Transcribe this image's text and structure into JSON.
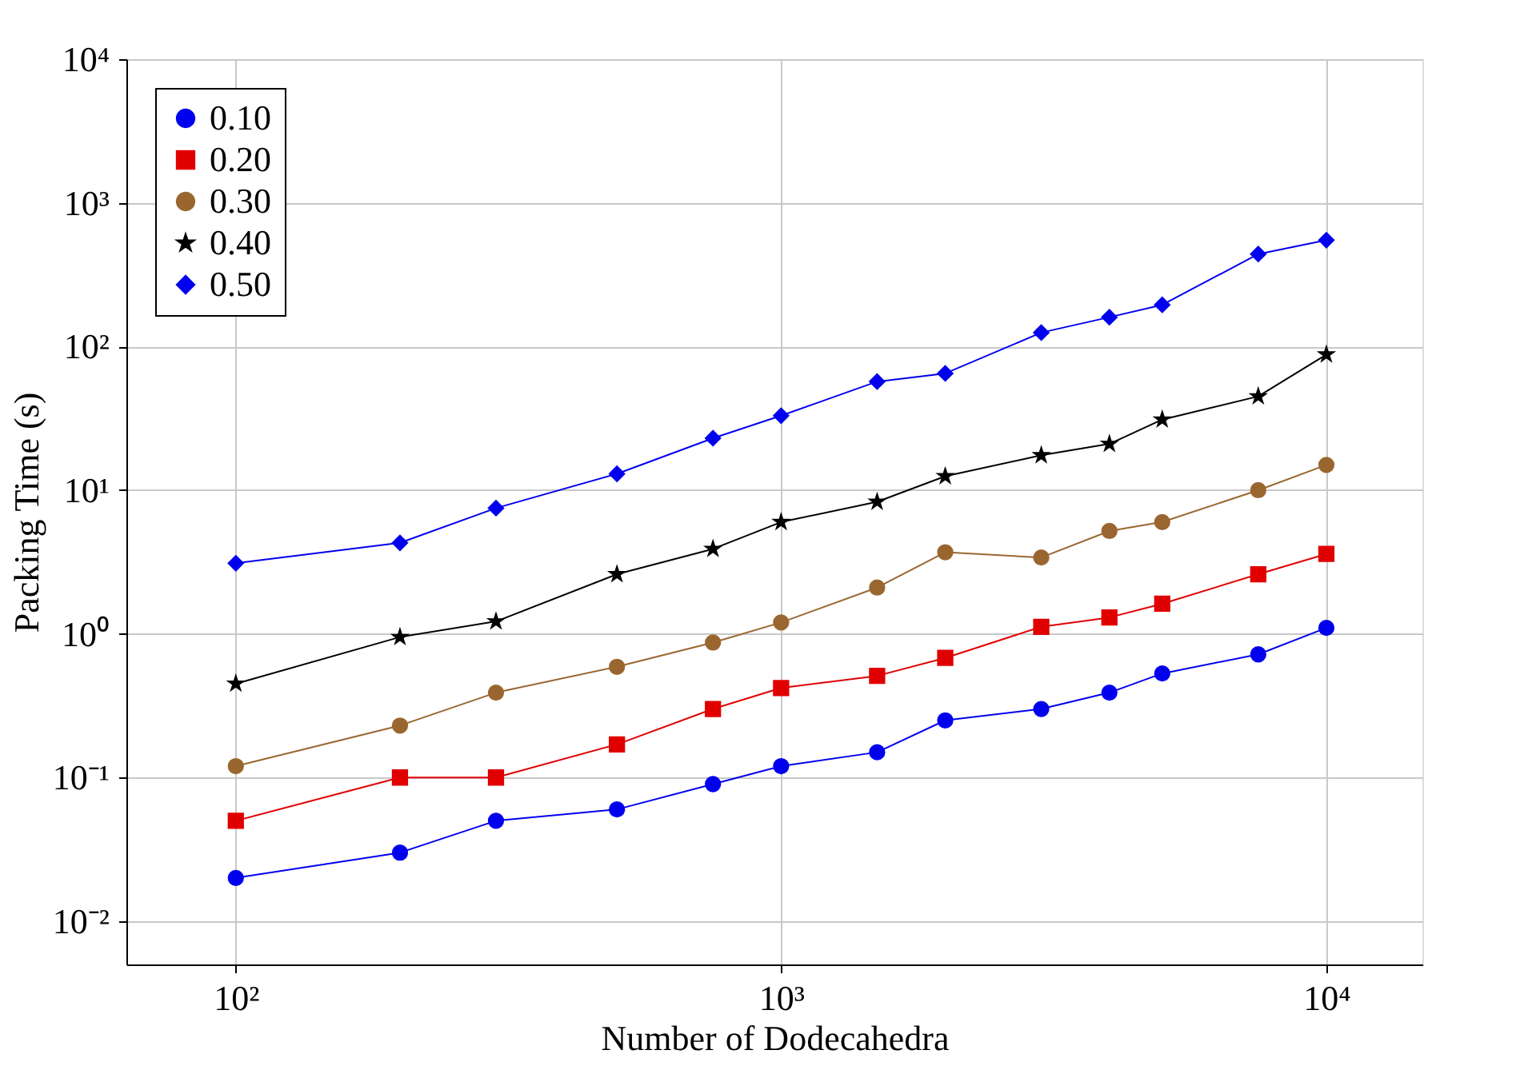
{
  "chart_data": {
    "type": "line",
    "xlabel": "Number of Dodecahedra",
    "ylabel": "Packing Time (s)",
    "log": "xy",
    "grid": true,
    "legend": "top left",
    "line_style": "solid",
    "x": [
      100,
      200,
      300,
      500,
      750,
      1000,
      1500,
      2000,
      3000,
      4000,
      5000,
      7500,
      10000
    ],
    "xlim": [
      63,
      15000
    ],
    "xticks": [
      {
        "value": 100,
        "label": "10²"
      },
      {
        "value": 1000,
        "label": "10³"
      },
      {
        "value": 10000,
        "label": "10⁴"
      }
    ],
    "ylim": [
      0.005,
      10000
    ],
    "yticks": [
      {
        "value": 0.01,
        "label": "10⁻²"
      },
      {
        "value": 0.1,
        "label": "10⁻¹"
      },
      {
        "value": 1,
        "label": "10⁰"
      },
      {
        "value": 10,
        "label": "10¹"
      },
      {
        "value": 100,
        "label": "10²"
      },
      {
        "value": 1000,
        "label": "10³"
      },
      {
        "value": 10000,
        "label": "10⁴"
      }
    ],
    "series": [
      {
        "name": "0.10",
        "color": "#0000ee",
        "marker": "circle",
        "values": [
          0.02,
          0.03,
          0.05,
          0.06,
          0.09,
          0.12,
          0.15,
          0.25,
          0.3,
          0.39,
          0.53,
          0.72,
          1.1
        ]
      },
      {
        "name": "0.20",
        "color": "#e00000",
        "marker": "square",
        "values": [
          0.05,
          0.1,
          0.1,
          0.17,
          0.3,
          0.42,
          0.51,
          0.68,
          1.12,
          1.3,
          1.62,
          2.6,
          3.6
        ]
      },
      {
        "name": "0.30",
        "color": "#9a6630",
        "marker": "circle",
        "values": [
          0.12,
          0.23,
          0.39,
          0.59,
          0.87,
          1.2,
          2.1,
          3.7,
          3.4,
          5.2,
          6.0,
          10,
          15
        ]
      },
      {
        "name": "0.40",
        "color": "#000000",
        "marker": "star",
        "values": [
          0.45,
          0.95,
          1.22,
          2.6,
          3.9,
          6.0,
          8.3,
          12.5,
          17.5,
          21,
          31,
          45,
          88
        ]
      },
      {
        "name": "0.50",
        "color": "#0000ee",
        "marker": "diamond",
        "values": [
          3.1,
          4.3,
          7.5,
          13,
          23,
          33,
          57,
          65,
          125,
          160,
          195,
          440,
          550
        ]
      }
    ]
  }
}
